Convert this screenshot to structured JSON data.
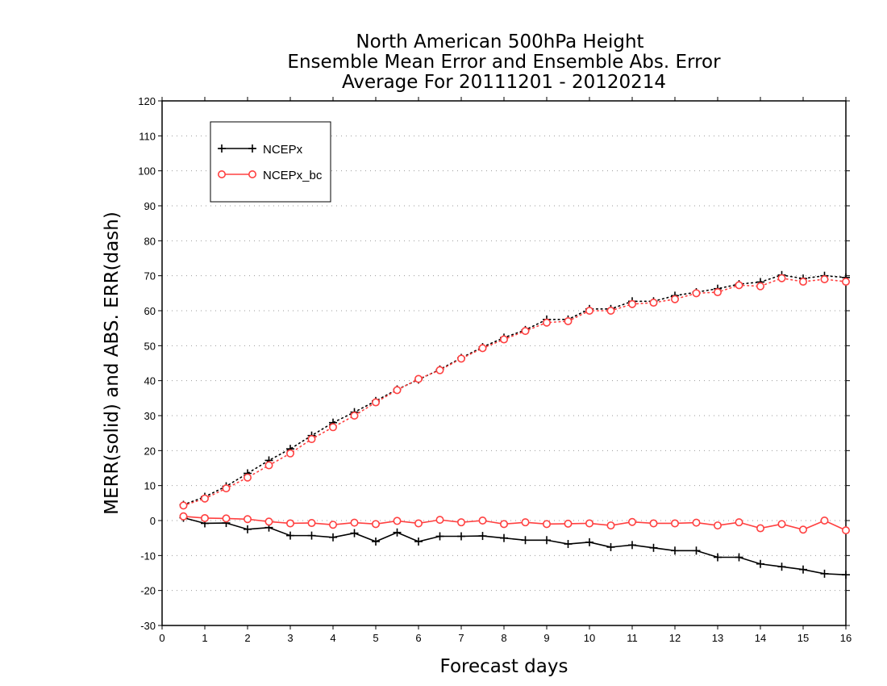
{
  "chart_data": {
    "type": "line",
    "title": [
      "North American 500hPa Height",
      "Ensemble Mean Error and Ensemble Abs. Error",
      "Average For 20111201 - 20120214"
    ],
    "xlabel": "Forecast days",
    "ylabel": "MERR(solid) and ABS. ERR(dash)",
    "xlim": [
      0,
      16
    ],
    "ylim": [
      -30,
      120
    ],
    "xticks": [
      0,
      1,
      2,
      3,
      4,
      5,
      6,
      7,
      8,
      9,
      10,
      11,
      12,
      13,
      14,
      15,
      16
    ],
    "yticks": [
      -30,
      -20,
      -10,
      0,
      10,
      20,
      30,
      40,
      50,
      60,
      70,
      80,
      90,
      100,
      110,
      120
    ],
    "grid": "horizontal dotted",
    "legend_position": "top-left",
    "x": [
      0.5,
      1,
      1.5,
      2,
      2.5,
      3,
      3.5,
      4,
      4.5,
      5,
      5.5,
      6,
      6.5,
      7,
      7.5,
      8,
      8.5,
      9,
      9.5,
      10,
      10.5,
      11,
      11.5,
      12,
      12.5,
      13,
      13.5,
      14,
      14.5,
      15,
      15.5,
      16
    ],
    "series": [
      {
        "name": "NCEPx",
        "kind": "MERR",
        "line_style": "solid",
        "color": "#000000",
        "marker": "plus",
        "values": [
          0.8,
          -0.8,
          -0.7,
          -2.5,
          -2.0,
          -4.3,
          -4.3,
          -4.8,
          -3.6,
          -6.0,
          -3.4,
          -6.0,
          -4.5,
          -4.5,
          -4.4,
          -5.0,
          -5.6,
          -5.6,
          -6.7,
          -6.2,
          -7.6,
          -7.0,
          -7.8,
          -8.6,
          -8.6,
          -10.5,
          -10.5,
          -12.4,
          -13.2,
          -14.0,
          -15.2,
          -15.5
        ]
      },
      {
        "name": "NCEPx",
        "kind": "ABS. ERR",
        "line_style": "dash",
        "color": "#000000",
        "marker": "plus",
        "values": [
          4.5,
          6.8,
          9.8,
          13.5,
          17.2,
          20.5,
          24.3,
          28.0,
          31.0,
          34.2,
          37.5,
          40.3,
          43.2,
          46.5,
          49.6,
          52.3,
          54.5,
          57.5,
          57.5,
          60.5,
          60.5,
          62.7,
          62.7,
          64.3,
          65.3,
          66.3,
          67.6,
          68.2,
          70.2,
          69.2,
          70.0,
          69.5
        ]
      },
      {
        "name": "NCEPx_bc",
        "kind": "MERR",
        "line_style": "solid",
        "color": "#ff4040",
        "marker": "circle",
        "values": [
          1.2,
          0.7,
          0.6,
          0.4,
          -0.3,
          -0.8,
          -0.7,
          -1.2,
          -0.6,
          -1.0,
          -0.1,
          -0.8,
          0.2,
          -0.5,
          0.0,
          -1.0,
          -0.5,
          -1.0,
          -0.9,
          -0.8,
          -1.4,
          -0.4,
          -0.8,
          -0.8,
          -0.6,
          -1.4,
          -0.5,
          -2.2,
          -1.0,
          -2.6,
          0.0,
          -2.8
        ]
      },
      {
        "name": "NCEPx_bc",
        "kind": "ABS. ERR",
        "line_style": "dash",
        "color": "#ff4040",
        "marker": "circle",
        "values": [
          4.3,
          6.3,
          9.2,
          12.3,
          15.8,
          19.2,
          23.3,
          26.7,
          30.0,
          33.8,
          37.3,
          40.5,
          43.0,
          46.3,
          49.3,
          51.8,
          54.2,
          56.6,
          57.0,
          60.0,
          60.0,
          61.9,
          62.3,
          63.3,
          65.0,
          65.3,
          67.3,
          67.0,
          69.3,
          68.3,
          69.0,
          68.3
        ]
      }
    ],
    "legend": [
      {
        "label": "NCEPx",
        "color": "#000000",
        "marker": "plus"
      },
      {
        "label": "NCEPx_bc",
        "color": "#ff4040",
        "marker": "circle"
      }
    ]
  }
}
